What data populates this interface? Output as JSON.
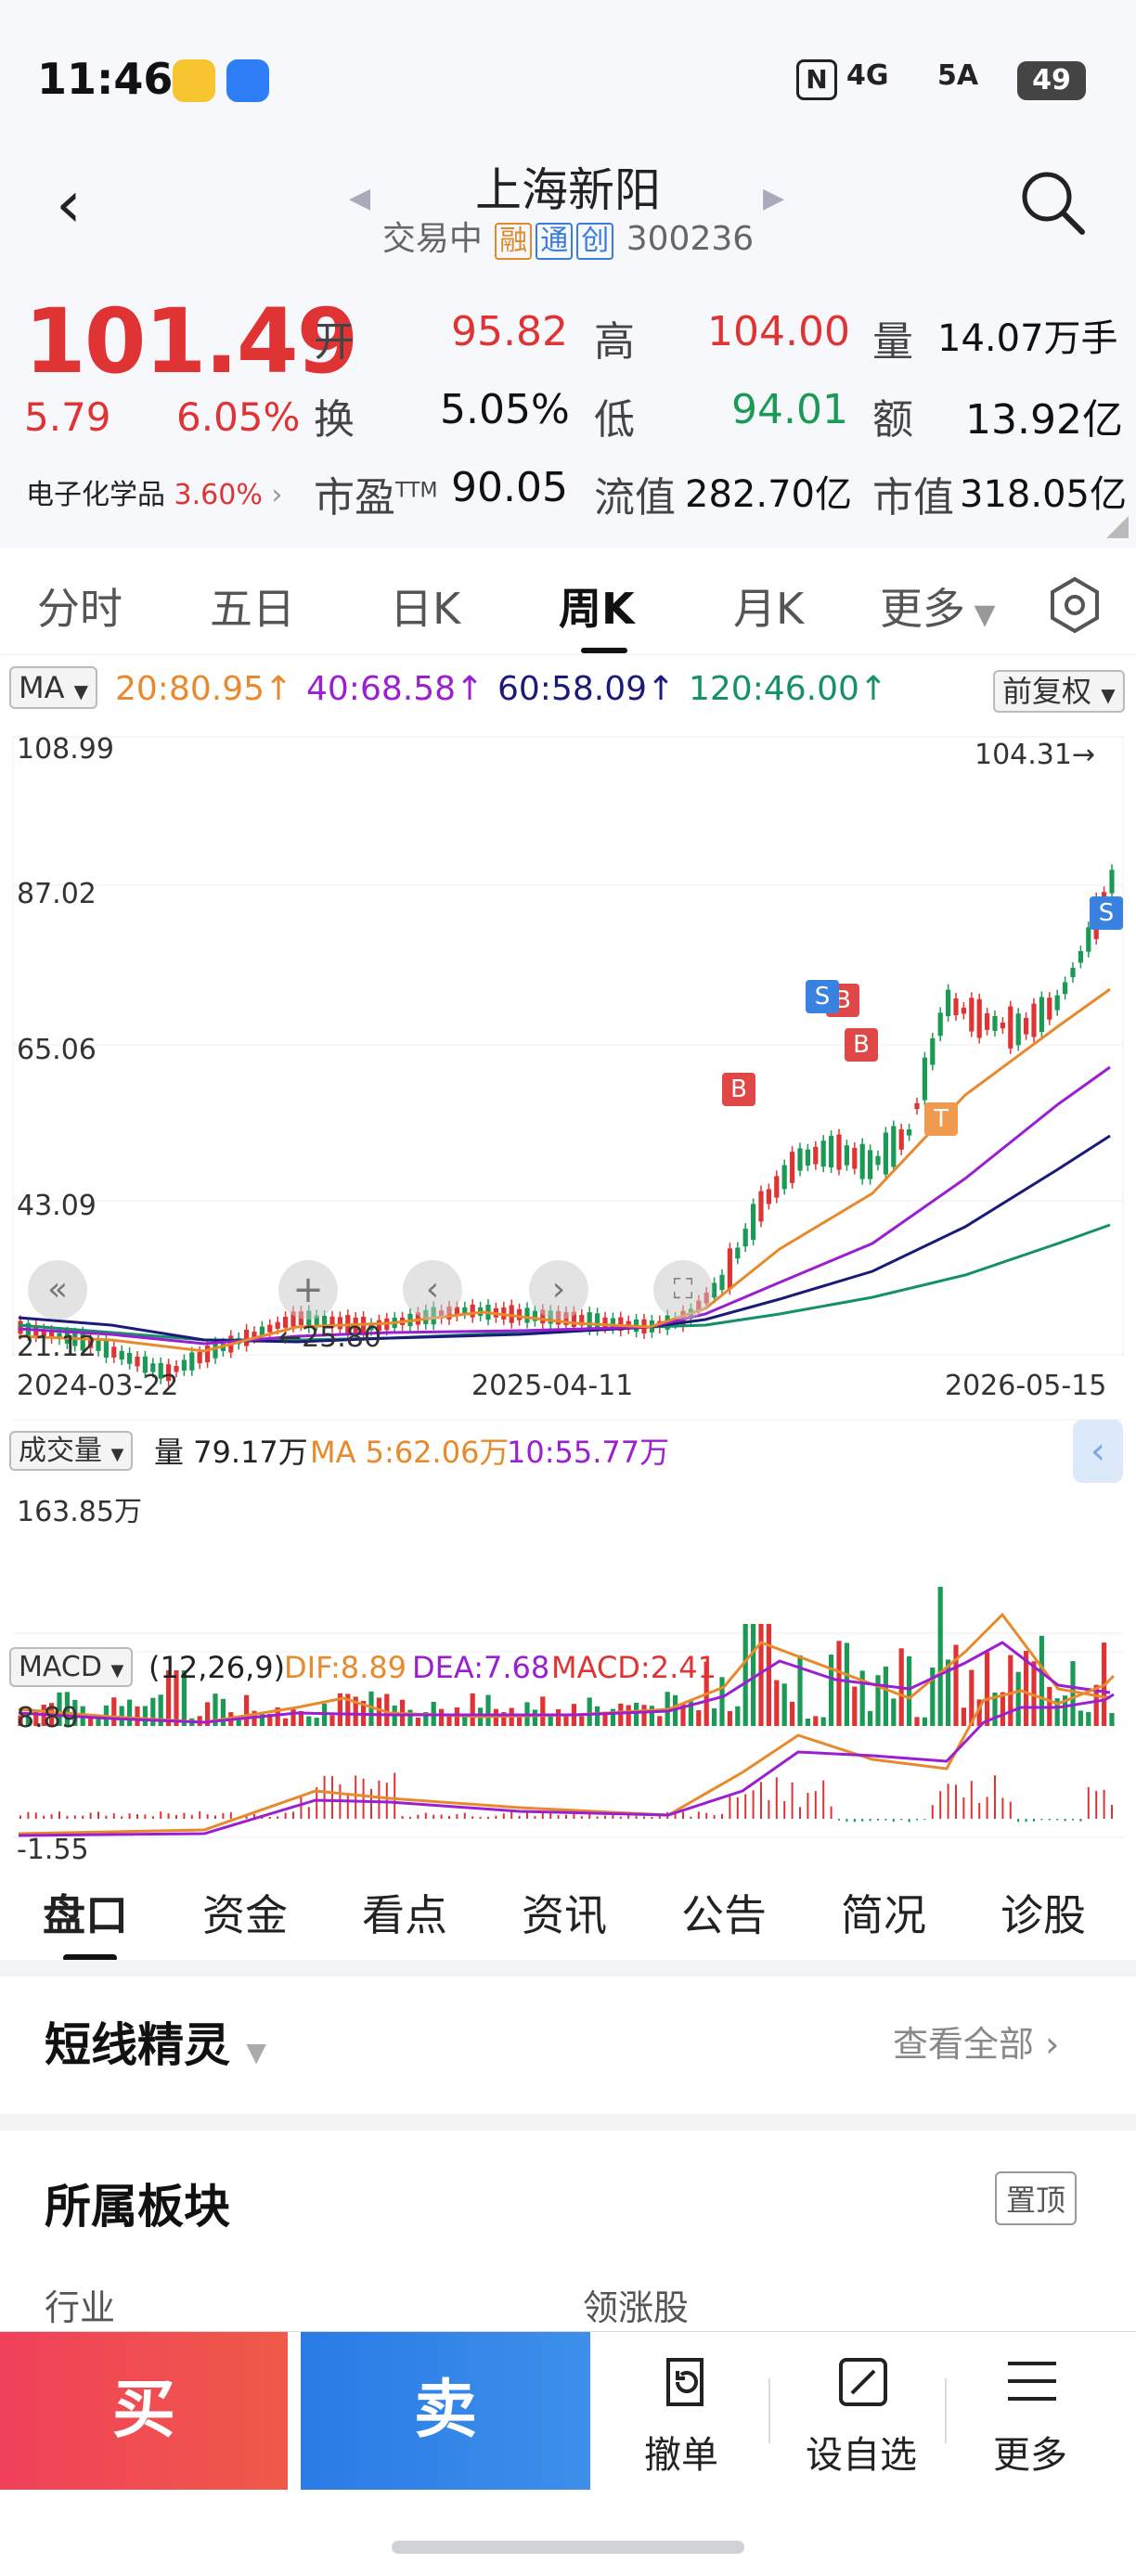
{
  "status": {
    "time": "11:46",
    "net1": "4G",
    "net2": "5A",
    "battery": "49"
  },
  "header": {
    "title": "上海新阳",
    "status": "交易中",
    "tag1": "融",
    "tag2": "通",
    "tag3": "创",
    "code": "300236"
  },
  "quote": {
    "price": "101.49",
    "change": "5.79",
    "pct": "6.05%",
    "sector": "电子化学品",
    "sector_pct": "3.60%",
    "open_l": "开",
    "open": "95.82",
    "high_l": "高",
    "high": "104.00",
    "vol_l": "量",
    "vol": "14.07万手",
    "turn_l": "换",
    "turn": "5.05%",
    "low_l": "低",
    "low": "94.01",
    "amt_l": "额",
    "amt": "13.92亿",
    "pe_l": "市盈",
    "pe_sup": "TTM",
    "pe": "90.05",
    "fcap_l": "流值",
    "fcap": "282.70亿",
    "cap_l": "市值",
    "cap": "318.05亿"
  },
  "tabs": [
    "分时",
    "五日",
    "日K",
    "周K",
    "月K",
    "更多"
  ],
  "ma": {
    "sel": "MA",
    "ma20": "20:80.95↑",
    "ma40": "40:68.58↑",
    "ma60": "60:58.09↑",
    "ma120": "120:46.00↑",
    "adj": "前复权"
  },
  "axis": {
    "y": [
      "108.99",
      "87.02",
      "65.06",
      "43.09",
      "21.12"
    ],
    "dates": [
      "2024-03-22",
      "2025-04-11",
      "2026-05-15"
    ],
    "hi": "104.31→",
    "lo": "←25.80"
  },
  "volume": {
    "sel": "成交量",
    "v": "量 79.17万",
    "ma5": "MA 5:62.06万",
    "ma10": "10:55.77万",
    "max": "163.85万"
  },
  "macd": {
    "sel": "MACD",
    "params": "(12,26,9)",
    "dif": "DIF:8.89",
    "dea": "DEA:7.68",
    "macd": "MACD:2.41",
    "top": "8.89",
    "bot": "-1.55"
  },
  "subtabs": [
    "盘口",
    "资金",
    "看点",
    "资讯",
    "公告",
    "简况",
    "诊股"
  ],
  "shortline": {
    "title": "短线精灵",
    "more": "查看全部"
  },
  "sector": {
    "title": "所属板块",
    "pin": "置顶",
    "col1": "行业",
    "col2": "领涨股"
  },
  "bottom": {
    "buy": "买",
    "sell": "卖",
    "cancel": "撤单",
    "watch": "设自选",
    "more": "更多"
  },
  "colors": {
    "up": "#e03434",
    "down": "#1a9a55",
    "ma20": "#e88a2c",
    "ma40": "#9b1fd0",
    "ma60": "#1a1a7a",
    "ma120": "#14906a"
  }
}
